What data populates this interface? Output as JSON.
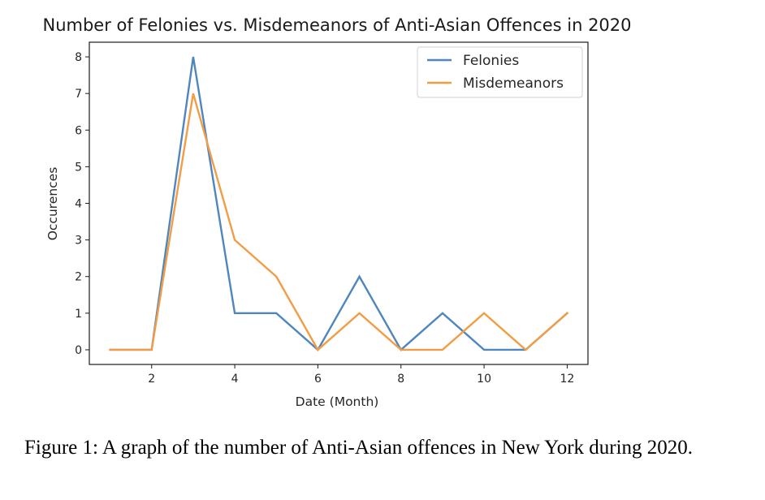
{
  "chart_data": {
    "type": "line",
    "title": "Number of Felonies vs. Misdemeanors of Anti-Asian Offences in 2020",
    "xlabel": "Date (Month)",
    "ylabel": "Occurences",
    "xlim": [
      0.5,
      12.5
    ],
    "ylim": [
      -0.4,
      8.4
    ],
    "xticks": [
      2,
      4,
      6,
      8,
      10,
      12
    ],
    "yticks": [
      0,
      1,
      2,
      3,
      4,
      5,
      6,
      7,
      8
    ],
    "grid": false,
    "legend_position": "top-right",
    "x": [
      1,
      2,
      3,
      4,
      5,
      6,
      7,
      8,
      9,
      10,
      11,
      12
    ],
    "series": [
      {
        "name": "Felonies",
        "color": "#4f86bd",
        "values": [
          0,
          0,
          8,
          1,
          1,
          0,
          2,
          0,
          1,
          0,
          0,
          1
        ]
      },
      {
        "name": "Misdemeanors",
        "color": "#f29d45",
        "values": [
          0,
          0,
          7,
          3,
          2,
          0,
          1,
          0,
          0,
          1,
          0,
          1
        ]
      }
    ]
  },
  "caption": "Figure 1: A graph of the number of Anti-Asian offences in New York during 2020."
}
